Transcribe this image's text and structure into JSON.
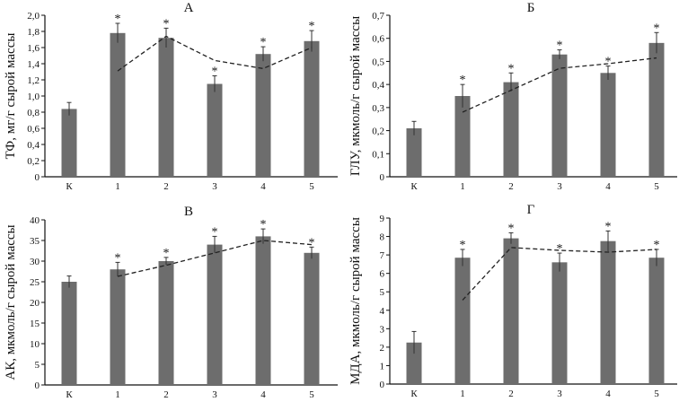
{
  "chart_data": [
    {
      "id": "A",
      "type": "bar",
      "title": "А",
      "xlabel": "",
      "ylabel": "ТФ, мг/г сырой массы",
      "categories": [
        "К",
        "1",
        "2",
        "3",
        "4",
        "5"
      ],
      "values": [
        0.84,
        1.78,
        1.72,
        1.15,
        1.52,
        1.68
      ],
      "errors": [
        0.08,
        0.12,
        0.12,
        0.1,
        0.09,
        0.13
      ],
      "significant": [
        false,
        true,
        true,
        true,
        true,
        true
      ],
      "trend_line": {
        "style": "dashed",
        "start_index": 1,
        "values": [
          1.31,
          1.74,
          1.44,
          1.34,
          1.6
        ]
      },
      "ylim": [
        0,
        2.0
      ],
      "yticks": [
        0,
        0.2,
        0.4,
        0.6,
        0.8,
        1.0,
        1.2,
        1.4,
        1.6,
        1.8,
        2.0
      ],
      "ytick_labels": [
        "0",
        "0,2",
        "0,4",
        "0,6",
        "0,8",
        "1,0",
        "1,2",
        "1,4",
        "1,6",
        "1,8",
        "2,0"
      ],
      "grid": false,
      "bar_color": "#6d6d6d"
    },
    {
      "id": "B",
      "type": "bar",
      "title": "Б",
      "xlabel": "",
      "ylabel": "ГЛУ, мкмоль/г сырой массы",
      "categories": [
        "К",
        "1",
        "2",
        "3",
        "4",
        "5"
      ],
      "values": [
        0.21,
        0.35,
        0.41,
        0.53,
        0.45,
        0.58
      ],
      "errors": [
        0.03,
        0.05,
        0.04,
        0.02,
        0.03,
        0.045
      ],
      "significant": [
        false,
        true,
        true,
        true,
        true,
        true
      ],
      "trend_line": {
        "style": "dashed",
        "start_index": 1,
        "values": [
          0.28,
          0.375,
          0.47,
          0.49,
          0.515
        ]
      },
      "ylim": [
        0,
        0.7
      ],
      "yticks": [
        0,
        0.1,
        0.2,
        0.3,
        0.4,
        0.5,
        0.6,
        0.7
      ],
      "ytick_labels": [
        "0",
        "0,1",
        "0,2",
        "0,3",
        "0,4",
        "0,5",
        "0,6",
        "0,7"
      ],
      "grid": false,
      "bar_color": "#6d6d6d"
    },
    {
      "id": "C",
      "type": "bar",
      "title": "В",
      "xlabel": "",
      "ylabel": "АК, мкмоль/г сырой массы",
      "categories": [
        "К",
        "1",
        "2",
        "3",
        "4",
        "5"
      ],
      "values": [
        25,
        28,
        30,
        34,
        36,
        32
      ],
      "errors": [
        1.4,
        1.7,
        0.9,
        2.0,
        1.8,
        1.4
      ],
      "significant": [
        false,
        true,
        true,
        true,
        true,
        true
      ],
      "trend_line": {
        "style": "dashed",
        "start_index": 1,
        "values": [
          26.3,
          29.0,
          32.0,
          35.0,
          34.0
        ]
      },
      "ylim": [
        0,
        40
      ],
      "yticks": [
        0,
        5,
        10,
        15,
        20,
        25,
        30,
        35,
        40
      ],
      "ytick_labels": [
        "0",
        "5",
        "10",
        "15",
        "20",
        "25",
        "30",
        "35",
        "40"
      ],
      "grid": false,
      "bar_color": "#6d6d6d"
    },
    {
      "id": "D",
      "type": "bar",
      "title": "Г",
      "xlabel": "",
      "ylabel": "МДА, мкмоль/г сырой массы",
      "categories": [
        "К",
        "1",
        "2",
        "3",
        "4",
        "5"
      ],
      "values": [
        2.25,
        6.85,
        7.9,
        6.6,
        7.75,
        6.85
      ],
      "errors": [
        0.6,
        0.45,
        0.3,
        0.5,
        0.55,
        0.45
      ],
      "significant": [
        false,
        true,
        true,
        true,
        true,
        true
      ],
      "trend_line": {
        "style": "dashed",
        "start_index": 1,
        "values": [
          4.55,
          7.4,
          7.25,
          7.15,
          7.3
        ]
      },
      "ylim": [
        0,
        9
      ],
      "yticks": [
        0,
        1,
        2,
        3,
        4,
        5,
        6,
        7,
        8,
        9
      ],
      "ytick_labels": [
        "0",
        "1",
        "2",
        "3",
        "4",
        "5",
        "6",
        "7",
        "8",
        "9"
      ],
      "grid": false,
      "bar_color": "#6d6d6d"
    }
  ],
  "significance_marker": "*"
}
